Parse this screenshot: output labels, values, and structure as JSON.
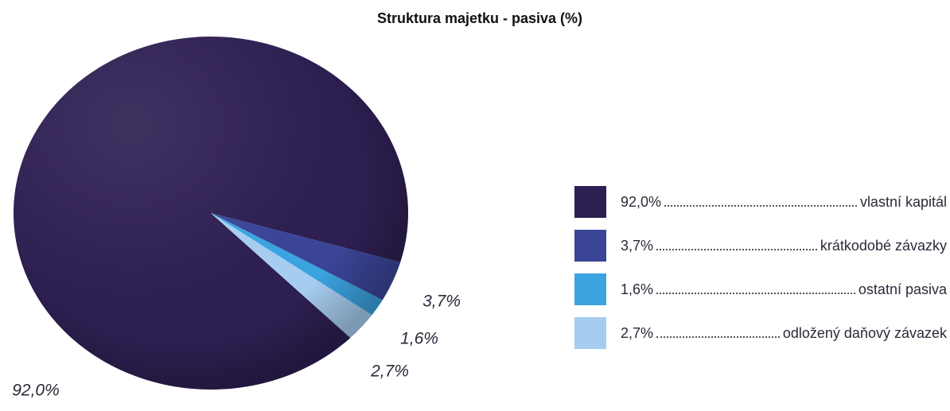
{
  "chart_data": {
    "type": "pie",
    "title": "Struktura majetku - pasiva (%)",
    "categories": [
      "vlastní kapitál",
      "krátkodobé závazky",
      "ostatní pasiva",
      "odložený daňový závazek"
    ],
    "values": [
      92.0,
      3.7,
      1.6,
      2.7
    ],
    "value_labels": [
      "92,0%",
      "3,7%",
      "1,6%",
      "2,7%"
    ],
    "colors": [
      "#2e1f52",
      "#3a4597",
      "#3ba3e0",
      "#a6cdef"
    ],
    "legend": "right"
  }
}
